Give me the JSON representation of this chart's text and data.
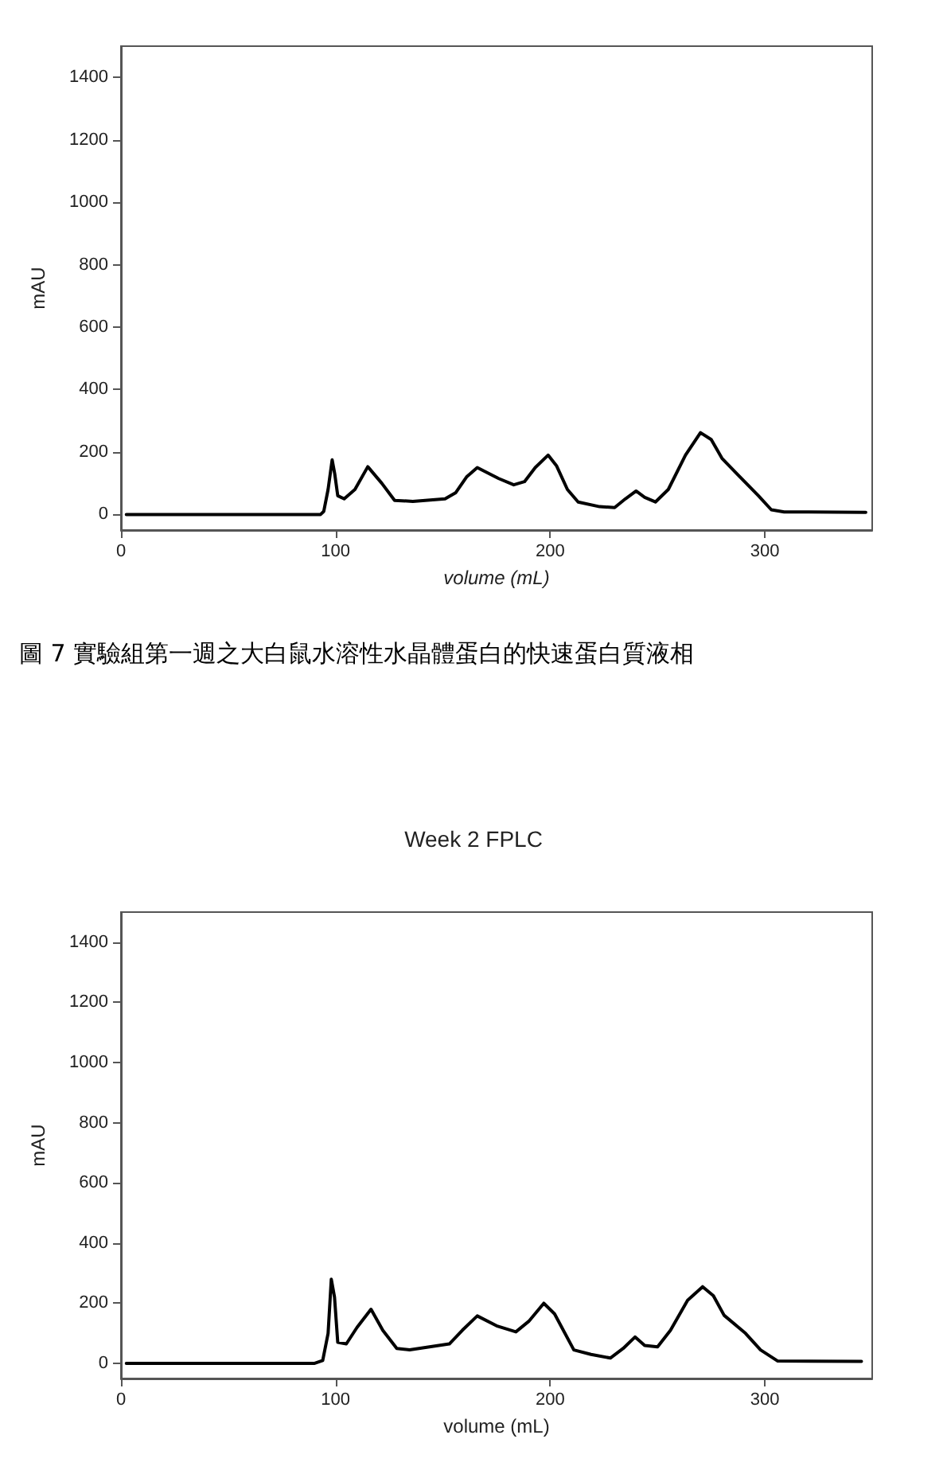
{
  "chart_data": [
    {
      "type": "line",
      "xlabel": "volume (mL)",
      "ylabel": "mAU",
      "annotations": [
        "圖 7 實驗組第一週之大白鼠水溶性水晶體蛋白的快速蛋白質液相"
      ],
      "x": [
        2.5,
        93,
        94.5,
        96.5,
        98.4,
        99.6,
        101,
        104,
        109,
        115,
        121.5,
        127.5,
        136,
        151,
        156,
        161,
        166,
        176,
        183,
        188,
        193,
        199,
        203,
        208,
        213,
        223,
        230,
        235,
        240,
        244,
        249,
        255,
        263,
        270,
        275,
        280,
        287,
        297,
        303,
        309,
        347
      ],
      "series": [
        {
          "color": "#000000",
          "values": [
            0,
            0,
            10,
            80,
            175,
            130,
            60,
            50,
            80,
            153,
            100,
            45,
            42,
            50,
            70,
            120,
            150,
            115,
            95,
            105,
            150,
            190,
            155,
            80,
            40,
            25,
            22,
            50,
            75,
            55,
            40,
            80,
            190,
            262,
            240,
            180,
            130,
            60,
            15,
            8,
            7
          ]
        }
      ],
      "xlim": [
        0,
        350
      ],
      "ylim": [
        -50,
        1500
      ],
      "xticks": [
        0,
        100,
        200,
        300
      ],
      "yticks": [
        0,
        200,
        400,
        600,
        800,
        1000,
        1200,
        1400
      ],
      "grid": false
    },
    {
      "type": "line",
      "title": "Week 2 FPLC",
      "xlabel": "volume (mL)",
      "ylabel": "mAU",
      "x": [
        2.5,
        90,
        94,
        96.5,
        98,
        99.5,
        101,
        105,
        110,
        116.5,
        122,
        128.5,
        134.5,
        153,
        159,
        166,
        175,
        184,
        190,
        197,
        202,
        211,
        219,
        228,
        234,
        239.5,
        244,
        250,
        256,
        264,
        271,
        276,
        281,
        291,
        298,
        306,
        345
      ],
      "series": [
        {
          "color": "#000000",
          "values": [
            0,
            0,
            10,
            100,
            280,
            220,
            70,
            65,
            120,
            180,
            110,
            50,
            45,
            65,
            110,
            158,
            125,
            105,
            140,
            200,
            165,
            45,
            30,
            18,
            50,
            88,
            60,
            55,
            110,
            210,
            255,
            225,
            160,
            100,
            45,
            8,
            7
          ]
        }
      ],
      "xlim": [
        0,
        350
      ],
      "ylim": [
        -50,
        1500
      ],
      "xticks": [
        0,
        100,
        200,
        300
      ],
      "yticks": [
        0,
        200,
        400,
        600,
        800,
        1000,
        1200,
        1400
      ],
      "grid": false
    }
  ]
}
